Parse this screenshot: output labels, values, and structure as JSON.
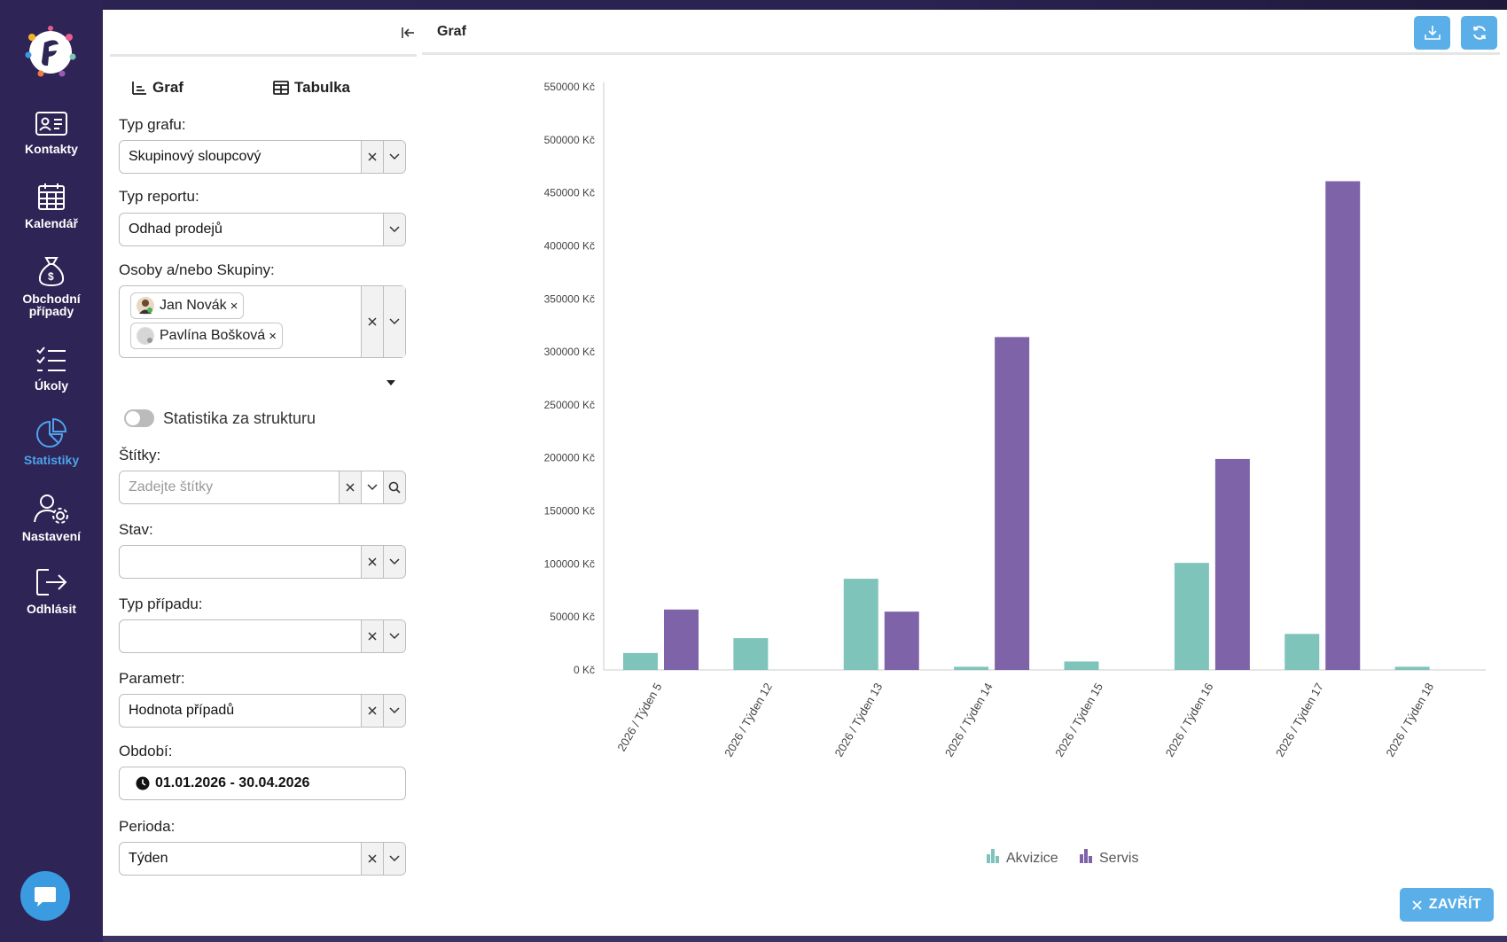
{
  "nav": {
    "items": [
      {
        "label": "Kontakty",
        "icon": "contact-card-icon"
      },
      {
        "label": "Kalendář",
        "icon": "calendar-icon"
      },
      {
        "label": "Obchodní případy",
        "icon": "money-bag-icon"
      },
      {
        "label": "Úkoly",
        "icon": "task-list-icon"
      },
      {
        "label": "Statistiky",
        "icon": "pie-chart-icon",
        "active": true
      },
      {
        "label": "Nastavení",
        "icon": "user-settings-icon"
      },
      {
        "label": "Odhlásit",
        "icon": "logout-icon"
      }
    ]
  },
  "tabs": {
    "graph": "Graf",
    "table": "Tabulka"
  },
  "filters": {
    "chart_type": {
      "label": "Typ grafu:",
      "value": "Skupinový sloupcový"
    },
    "report_type": {
      "label": "Typ reportu:",
      "value": "Odhad prodejů"
    },
    "people": {
      "label": "Osoby a/nebo Skupiny:",
      "chips": [
        "Jan Novák",
        "Pavlína Bošková"
      ],
      "remove_glyph": "×"
    },
    "structure_toggle": {
      "label": "Statistika za strukturu",
      "on": false
    },
    "tags": {
      "label": "Štítky:",
      "placeholder": "Zadejte štítky"
    },
    "status": {
      "label": "Stav:",
      "value": ""
    },
    "case_type": {
      "label": "Typ případu:",
      "value": ""
    },
    "parameter": {
      "label": "Parametr:",
      "value": "Hodnota případů"
    },
    "period_range": {
      "label": "Období:",
      "value": "01.01.2026 - 30.04.2026"
    },
    "period": {
      "label": "Perioda:",
      "value": "Týden"
    }
  },
  "chart_header": {
    "title": "Graf"
  },
  "close_button": {
    "label": "ZAVŘÍT"
  },
  "colors": {
    "akvizice": "#7fc4bb",
    "servis": "#7f63a8",
    "accent": "#5aafe8",
    "nav_bg": "#2e2455",
    "nav_active": "#4fa3ec"
  },
  "chart_data": {
    "type": "bar",
    "title": "",
    "xlabel": "",
    "ylabel": "",
    "ylim": [
      0,
      550000
    ],
    "y_ticks": [
      "0 Kč",
      "50000 Kč",
      "100000 Kč",
      "150000 Kč",
      "200000 Kč",
      "250000 Kč",
      "300000 Kč",
      "350000 Kč",
      "400000 Kč",
      "450000 Kč",
      "500000 Kč",
      "550000 Kč"
    ],
    "categories": [
      "2026 / Týden 5",
      "2026 / Týden 12",
      "2026 / Týden 13",
      "2026 / Týden 14",
      "2026 / Týden 15",
      "2026 / Týden 16",
      "2026 / Týden 17",
      "2026 / Týden 18"
    ],
    "series": [
      {
        "name": "Akvizice",
        "values": [
          16000,
          30000,
          86000,
          3000,
          8000,
          101000,
          34000,
          3000
        ]
      },
      {
        "name": "Servis",
        "values": [
          57000,
          0,
          55000,
          314000,
          0,
          199000,
          461000,
          0
        ]
      }
    ],
    "legend": "bottom-center",
    "grid": false
  }
}
